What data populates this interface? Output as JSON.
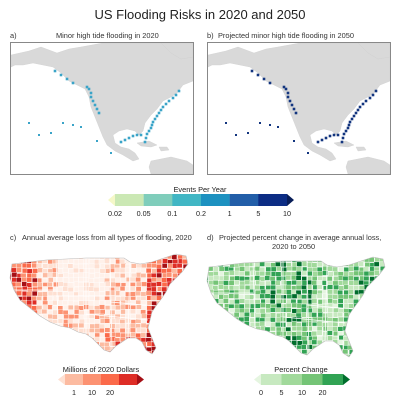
{
  "title": "US Flooding Risks in 2020 and 2050",
  "panels": {
    "a": {
      "letter": "a)",
      "caption": "Minor high tide flooding in 2020"
    },
    "b": {
      "letter": "b)",
      "caption": "Projected minor high tide flooding in 2050"
    },
    "c": {
      "letter": "c)",
      "caption": "Annual average loss from all types of flooding, 2020"
    },
    "d": {
      "letter": "d)",
      "caption": "Projected percent change in average annual loss,",
      "caption2": "2020 to 2050"
    }
  },
  "legend_events": {
    "title": "Events Per Year",
    "ticks": [
      "0.02",
      "0.05",
      "0.1",
      "0.2",
      "1",
      "5",
      "10"
    ],
    "colors": [
      "#f5f8c8",
      "#cbe8b4",
      "#7fcdbb",
      "#41b6c4",
      "#1d91c0",
      "#225ea8",
      "#0c2c84",
      "#081d58"
    ]
  },
  "legend_loss": {
    "title": "Millions of 2020 Dollars",
    "ticks": [
      "1",
      "10",
      "20"
    ],
    "colors": [
      "#fee0d2",
      "#fcbba1",
      "#fc9272",
      "#fb6a4a",
      "#de2d26",
      "#a50f15"
    ]
  },
  "legend_change": {
    "title": "Percent Change",
    "ticks": [
      "0",
      "5",
      "10",
      "20"
    ],
    "colors": [
      "#e5f5e0",
      "#c7e9c0",
      "#a1d99b",
      "#74c476",
      "#31a354",
      "#006d2c"
    ]
  },
  "map_colors": {
    "land": "#d9d9d9",
    "ocean": "#ffffff",
    "coast_2020": "#3aa4c8",
    "coast_2050": "#13357f"
  }
}
